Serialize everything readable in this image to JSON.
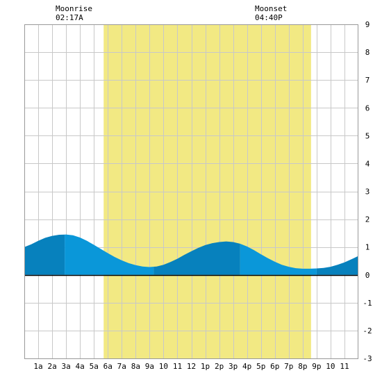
{
  "chart_data": {
    "type": "area",
    "title": "",
    "xlabel": "",
    "ylabel": "",
    "x_tick_labels": [
      "1a",
      "2a",
      "3a",
      "4a",
      "5a",
      "6a",
      "7a",
      "8a",
      "9a",
      "10",
      "11",
      "12",
      "1p",
      "2p",
      "3p",
      "4p",
      "5p",
      "6p",
      "7p",
      "8p",
      "9p",
      "10",
      "11"
    ],
    "ylim": [
      -3,
      9
    ],
    "y_ticks": [
      "-3",
      "-2",
      "-1",
      "0",
      "1",
      "2",
      "3",
      "4",
      "5",
      "6",
      "7",
      "8",
      "9"
    ],
    "grid": true,
    "daylight": {
      "start_hour": 5.7,
      "end_hour": 20.6,
      "color": "#f2e983"
    },
    "moonrise": {
      "label": "Moonrise",
      "time": "02:17A",
      "hour": 2.28
    },
    "moonset": {
      "label": "Moonset",
      "time": "04:40P",
      "hour": 16.67
    },
    "tide_series": {
      "name": "",
      "color_light": "#0a97d9",
      "color_dark": "#0781bd",
      "x": [
        0,
        0.5,
        1,
        1.5,
        2,
        2.5,
        3,
        3.5,
        4,
        4.5,
        5,
        5.5,
        6,
        6.5,
        7,
        7.5,
        8,
        8.5,
        9,
        9.5,
        10,
        10.5,
        11,
        11.5,
        12,
        12.5,
        13,
        13.5,
        14,
        14.5,
        15,
        15.5,
        16,
        16.5,
        17,
        17.5,
        18,
        18.5,
        19,
        19.5,
        20,
        20.5,
        21,
        21.5,
        22,
        22.5,
        23,
        23.5,
        24
      ],
      "y": [
        1.0,
        1.1,
        1.22,
        1.33,
        1.4,
        1.44,
        1.45,
        1.42,
        1.34,
        1.22,
        1.08,
        0.93,
        0.78,
        0.64,
        0.52,
        0.42,
        0.35,
        0.3,
        0.28,
        0.3,
        0.36,
        0.46,
        0.58,
        0.72,
        0.85,
        0.97,
        1.07,
        1.14,
        1.18,
        1.2,
        1.18,
        1.12,
        1.02,
        0.89,
        0.74,
        0.6,
        0.47,
        0.36,
        0.29,
        0.24,
        0.22,
        0.22,
        0.23,
        0.25,
        0.29,
        0.36,
        0.45,
        0.56,
        0.68
      ],
      "extrema_hours": [
        2.9,
        9.3,
        15.5,
        21.0
      ]
    }
  }
}
